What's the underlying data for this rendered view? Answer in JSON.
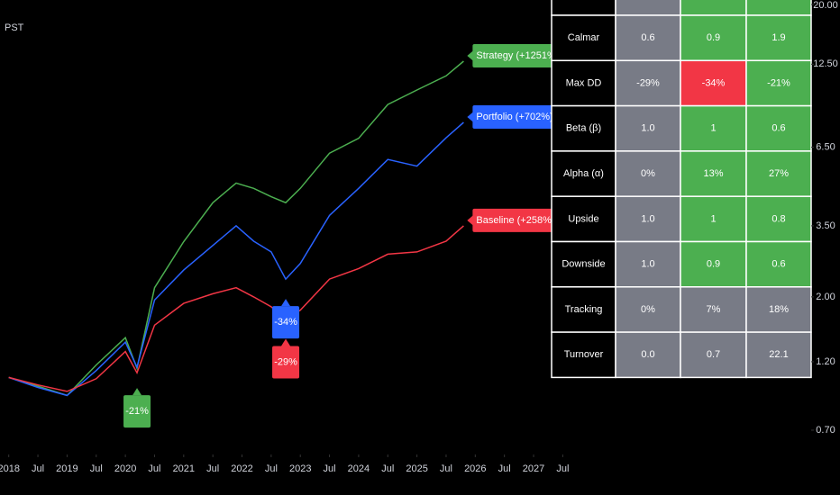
{
  "chart_data": {
    "type": "line",
    "timezone": "PST",
    "log_scale": true,
    "x": [
      2018,
      2018.5,
      2019,
      2019.5,
      2020,
      2020.2,
      2020.5,
      2021,
      2021.5,
      2021.9,
      2022.2,
      2022.5,
      2022.75,
      2023,
      2023.5,
      2024,
      2024.5,
      2025,
      2025.5,
      2025.8
    ],
    "series": [
      {
        "name": "Strategy (+1251%)",
        "color": "#4caf50",
        "drawdown_label": "-21%",
        "values": [
          1.06,
          0.99,
          0.92,
          1.17,
          1.45,
          1.14,
          2.15,
          3.09,
          4.2,
          4.9,
          4.7,
          4.4,
          4.2,
          4.7,
          6.2,
          6.97,
          9.1,
          10.2,
          11.4,
          12.8
        ]
      },
      {
        "name": "Portfolio (+702%)",
        "color": "#2962ff",
        "drawdown_label": "-34%",
        "values": [
          1.06,
          0.98,
          0.92,
          1.12,
          1.4,
          1.15,
          1.95,
          2.47,
          3.0,
          3.5,
          3.1,
          2.85,
          2.3,
          2.6,
          3.8,
          4.7,
          5.9,
          5.6,
          7.0,
          7.9
        ]
      },
      {
        "name": "Baseline (+258%)",
        "color": "#f23645",
        "drawdown_label": "-29%",
        "values": [
          1.06,
          1.0,
          0.95,
          1.05,
          1.3,
          1.1,
          1.6,
          1.9,
          2.05,
          2.15,
          2.0,
          1.85,
          1.68,
          1.8,
          2.3,
          2.5,
          2.8,
          2.85,
          3.1,
          3.5
        ]
      }
    ],
    "xlim": [
      2017.85,
      2031.76
    ],
    "xticks": [
      2018,
      {
        "value": 2018.5,
        "label": "Jul"
      },
      2019,
      {
        "value": 2019.5,
        "label": "Jul"
      },
      2020,
      {
        "value": 2020.5,
        "label": "Jul"
      },
      2021,
      {
        "value": 2021.5,
        "label": "Jul"
      },
      2022,
      {
        "value": 2022.5,
        "label": "Jul"
      },
      2023,
      {
        "value": 2023.5,
        "label": "Jul"
      },
      2024,
      {
        "value": 2024.5,
        "label": "Jul"
      },
      2025,
      {
        "value": 2025.5,
        "label": "Jul"
      },
      2026,
      {
        "value": 2026.5,
        "label": "Jul"
      },
      2027,
      {
        "value": 2027.5,
        "label": "Jul"
      }
    ],
    "ylim": [
      0.578,
      20.72
    ],
    "yticks": [
      {
        "value": 0.7,
        "label": "0.70"
      },
      {
        "value": 1.2,
        "label": "1.20"
      },
      {
        "value": 2,
        "label": "2.00"
      },
      {
        "value": 3.5,
        "label": "3.50"
      },
      {
        "value": 6.5,
        "label": "6.50"
      },
      {
        "value": 12.5,
        "label": "12.50"
      },
      {
        "value": 20,
        "label": "20.00"
      }
    ]
  },
  "table": {
    "rows": [
      [
        "Calmar",
        "0.6",
        "0.9",
        "1.9"
      ],
      [
        "Max DD",
        "-29%",
        "-34%",
        "-21%"
      ],
      [
        "Beta (β)",
        "1.0",
        "1",
        "0.6"
      ],
      [
        "Alpha (α)",
        "0%",
        "13%",
        "27%"
      ],
      [
        "Upside",
        "1.0",
        "1",
        "0.8"
      ],
      [
        "Downside",
        "1.0",
        "0.9",
        "0.6"
      ],
      [
        "Tracking",
        "0%",
        "7%",
        "18%"
      ],
      [
        "Turnover",
        "0.0",
        "0.7",
        "22.1"
      ]
    ],
    "cell_colors": [
      [
        "#787b86",
        "#4caf50",
        "#4caf50"
      ],
      [
        "#787b86",
        "#f23645",
        "#4caf50"
      ],
      [
        "#787b86",
        "#4caf50",
        "#4caf50"
      ],
      [
        "#787b86",
        "#4caf50",
        "#4caf50"
      ],
      [
        "#787b86",
        "#4caf50",
        "#4caf50"
      ],
      [
        "#787b86",
        "#4caf50",
        "#4caf50"
      ],
      [
        "#787b86",
        "#787b86",
        "#787b86"
      ],
      [
        "#787b86",
        "#787b86",
        "#787b86"
      ]
    ]
  }
}
